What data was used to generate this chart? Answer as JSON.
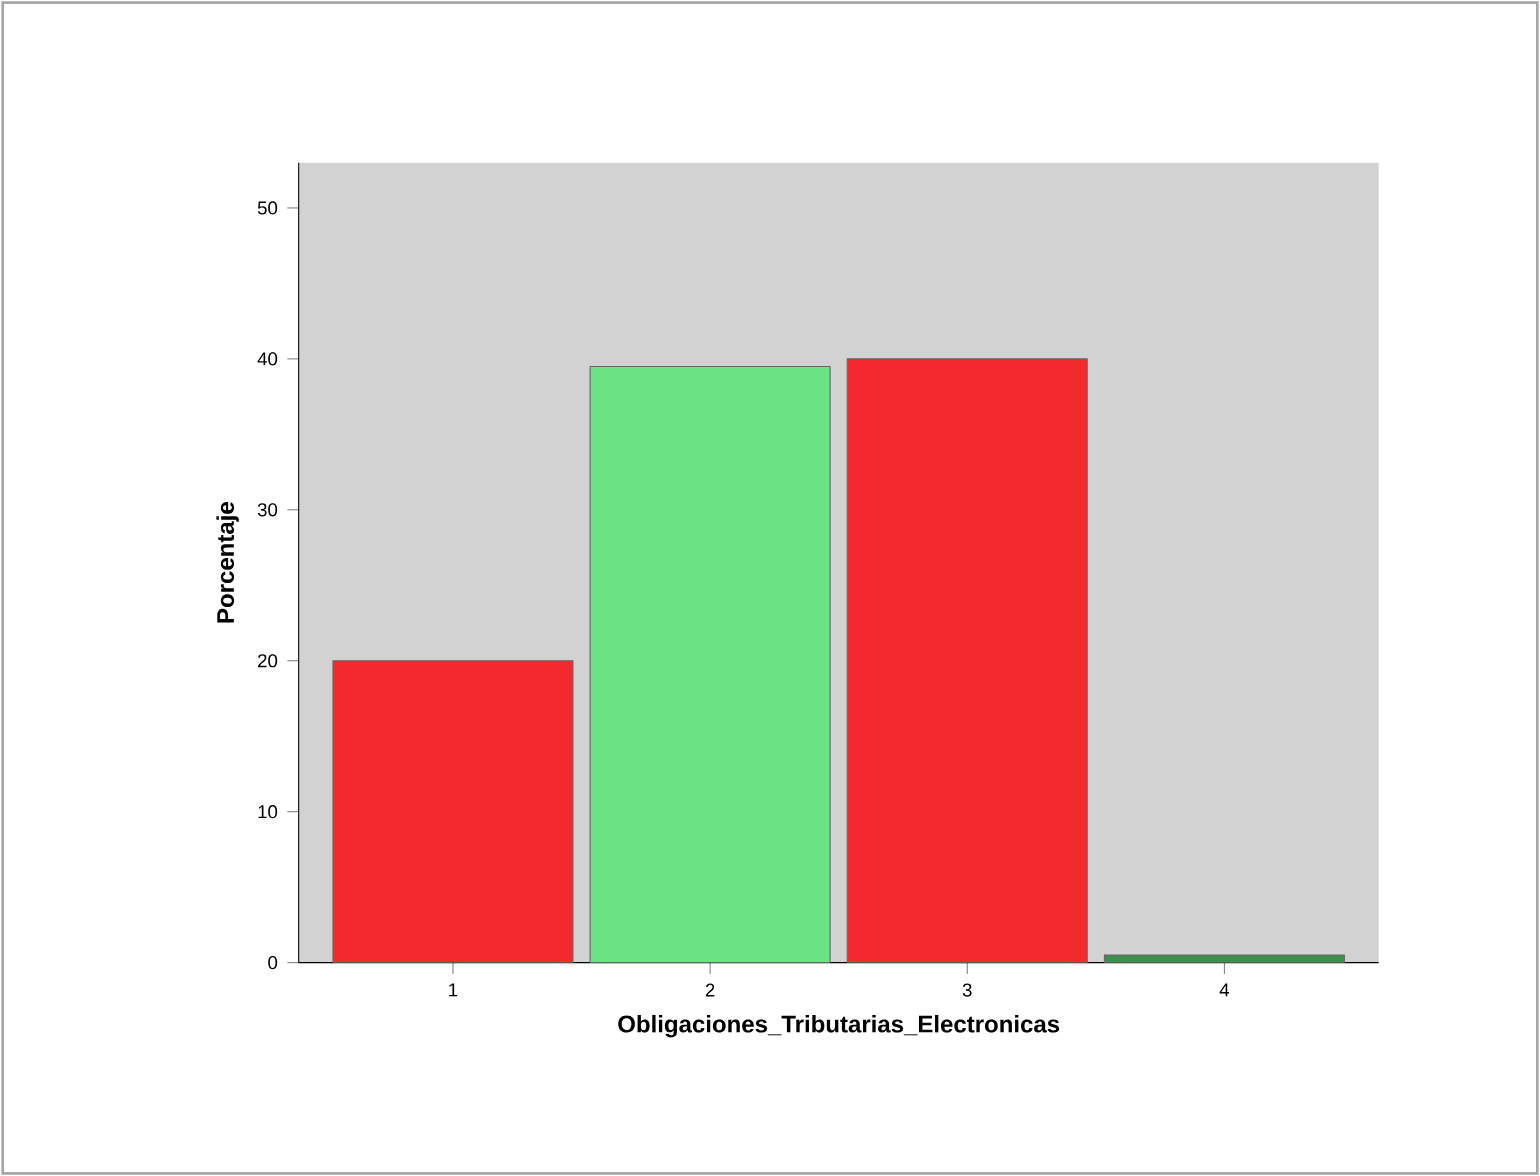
{
  "chart_data": {
    "type": "bar",
    "xlabel": "Obligaciones_Tributarias_Electronicas",
    "ylabel": "Porcentaje",
    "categories": [
      "1",
      "2",
      "3",
      "4"
    ],
    "values": [
      20,
      39.5,
      40,
      0.5
    ],
    "colors": [
      "#f22a2e",
      "#6ae384",
      "#f22a2e",
      "#3c8f4c"
    ],
    "ylim": [
      0,
      53
    ],
    "yticks": [
      0,
      10,
      20,
      30,
      40,
      50
    ]
  }
}
